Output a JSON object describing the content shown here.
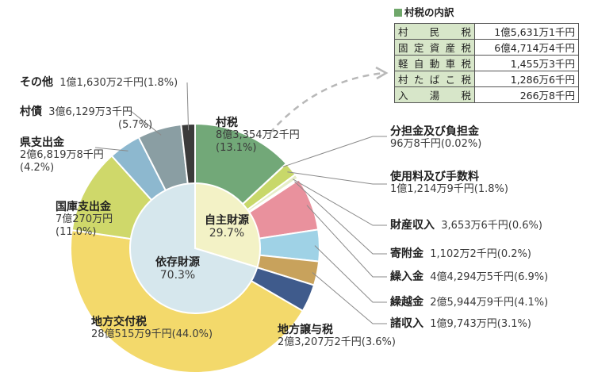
{
  "chart_data": {
    "type": "pie",
    "outer_ring": [
      {
        "label": "村税",
        "amount": "8億3,354万2千円",
        "percent": "(13.1%)",
        "value": 13.1,
        "color": "#72a878",
        "group": "自主財源"
      },
      {
        "label": "分担金及び負担金",
        "amount": "96万8千円",
        "percent": "(0.02%)",
        "value": 0.02,
        "color": "#cfe08a",
        "group": "自主財源"
      },
      {
        "label": "使用料及び手数料",
        "amount": "1億1,214万9千円",
        "percent": "(1.8%)",
        "value": 1.8,
        "color": "#c8d86a",
        "group": "自主財源"
      },
      {
        "label": "財産収入",
        "amount": "3,653万6千円",
        "percent": "(0.6%)",
        "value": 0.6,
        "color": "#e6eec8",
        "group": "自主財源"
      },
      {
        "label": "寄附金",
        "amount": "1,102万2千円",
        "percent": "(0.2%)",
        "value": 0.2,
        "color": "#f3c9d3",
        "group": "自主財源"
      },
      {
        "label": "繰入金",
        "amount": "4億4,294万5千円",
        "percent": "(6.9%)",
        "value": 6.9,
        "color": "#e9919d",
        "group": "自主財源"
      },
      {
        "label": "繰越金",
        "amount": "2億5,944万9千円",
        "percent": "(4.1%)",
        "value": 4.1,
        "color": "#9fd2e6",
        "group": "自主財源"
      },
      {
        "label": "諸収入",
        "amount": "1億9,743万円",
        "percent": "(3.1%)",
        "value": 3.1,
        "color": "#c8a25c",
        "group": "自主財源"
      },
      {
        "label": "地方譲与税",
        "amount": "2億3,207万2千円",
        "percent": "(3.6%)",
        "value": 3.6,
        "color": "#3f5b8c",
        "group": "依存財源"
      },
      {
        "label": "地方交付税",
        "amount": "28億515万9千円",
        "percent": "(44.0%)",
        "value": 44.0,
        "color": "#f3d96b",
        "group": "依存財源"
      },
      {
        "label": "国庫支出金",
        "amount": "7億270万円",
        "percent": "(11.0%)",
        "value": 11.0,
        "color": "#cfd86a",
        "group": "依存財源"
      },
      {
        "label": "県支出金",
        "amount": "2億6,819万8千円",
        "percent": "(4.2%)",
        "value": 4.2,
        "color": "#8db8cf",
        "group": "依存財源"
      },
      {
        "label": "村債",
        "amount": "3億6,129万3千円",
        "percent": "(5.7%)",
        "value": 5.7,
        "color": "#8a9ea3",
        "group": "依存財源"
      },
      {
        "label": "その他",
        "amount": "1億1,630万2千円",
        "percent": "(1.8%)",
        "value": 1.8,
        "color": "#3b3b3b",
        "group": "依存財源"
      }
    ],
    "inner_ring": [
      {
        "label": "自主財源",
        "percent": "29.7%",
        "value": 29.7,
        "color": "#f3f2c6"
      },
      {
        "label": "依存財源",
        "percent": "70.3%",
        "value": 70.3,
        "color": "#d6e7ed"
      }
    ],
    "breakdown": {
      "title": "村税の内訳",
      "rows": [
        {
          "label": "村民税",
          "value": "1億5,631万1千円"
        },
        {
          "label": "固定資産税",
          "value": "6億4,714万4千円"
        },
        {
          "label": "軽自動車税",
          "value": "1,455万3千円"
        },
        {
          "label": "村たばこ税",
          "value": "1,286万6千円"
        },
        {
          "label": "入湯税",
          "value": "266万8千円"
        }
      ]
    }
  }
}
